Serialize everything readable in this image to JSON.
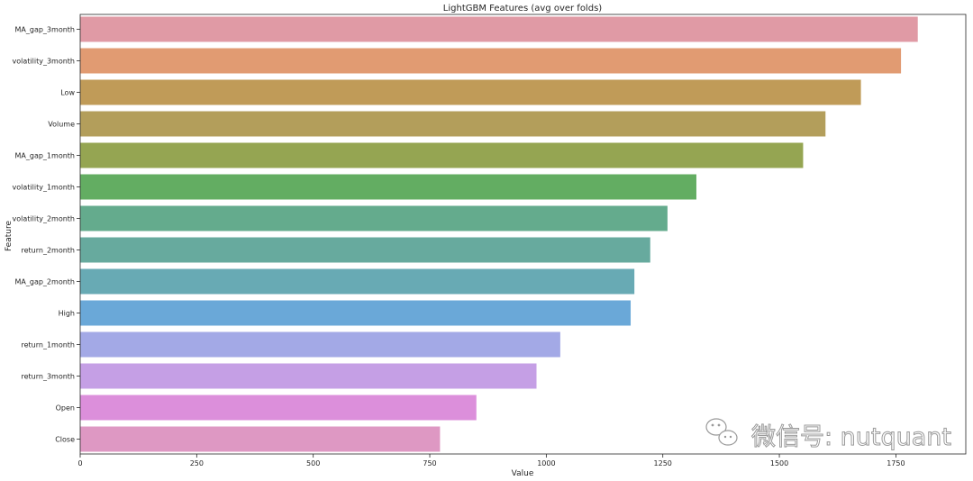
{
  "chart_data": {
    "type": "bar",
    "orientation": "horizontal",
    "title": "LightGBM Features (avg over folds)",
    "xlabel": "Value",
    "ylabel": "Feature",
    "xlim": [
      0,
      1900
    ],
    "xticks": [
      0,
      250,
      500,
      750,
      1000,
      1250,
      1500,
      1750
    ],
    "grid": false,
    "categories": [
      "MA_gap_3month",
      "volatility_3month",
      "Low",
      "Volume",
      "MA_gap_1month",
      "volatility_1month",
      "volatility_2month",
      "return_2month",
      "MA_gap_2month",
      "High",
      "return_1month",
      "return_3month",
      "Open",
      "Close"
    ],
    "values": [
      1797,
      1761,
      1675,
      1599,
      1551,
      1322,
      1260,
      1223,
      1189,
      1181,
      1030,
      979,
      850,
      772
    ],
    "colors": [
      "#e09aa5",
      "#e19b72",
      "#c09b58",
      "#b39e5b",
      "#95a552",
      "#63ad62",
      "#64ab8d",
      "#67aa9e",
      "#68aab4",
      "#6aa8d8",
      "#a3a9e6",
      "#c59fe5",
      "#dc8fdb",
      "#de98c3"
    ]
  },
  "watermark": {
    "text": "微信号: nutquant",
    "icon": "wechat-icon"
  }
}
